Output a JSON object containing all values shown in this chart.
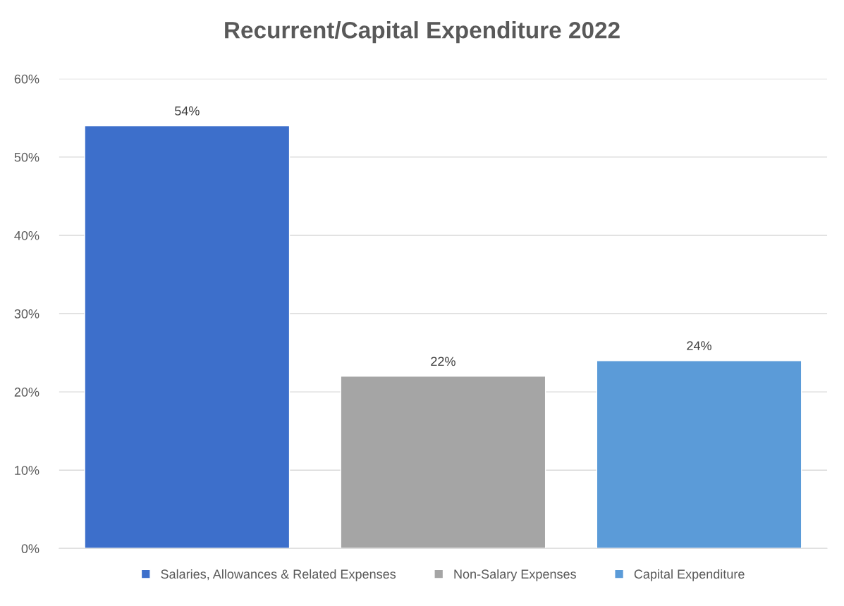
{
  "chart_data": {
    "type": "bar",
    "title": "Recurrent/Capital Expenditure 2022",
    "categories": [
      null,
      null,
      null
    ],
    "series": [
      {
        "name": "Salaries, Allowances & Related Expenses",
        "color": "#3d6fcb",
        "values": [
          54,
          null,
          null
        ],
        "value_labels": [
          "54%",
          null,
          null
        ]
      },
      {
        "name": "Non-Salary Expenses",
        "color": "#a5a5a5",
        "values": [
          null,
          22,
          null
        ],
        "value_labels": [
          null,
          "22%",
          null
        ]
      },
      {
        "name": "Capital Expenditure",
        "color": "#5b9bd8",
        "values": [
          null,
          null,
          24
        ],
        "value_labels": [
          null,
          null,
          "24%"
        ]
      }
    ],
    "ylim": [
      0,
      60
    ],
    "yticks": [
      {
        "value": 0,
        "label": "0%"
      },
      {
        "value": 10,
        "label": "10%"
      },
      {
        "value": 20,
        "label": "20%"
      },
      {
        "value": 30,
        "label": "30%"
      },
      {
        "value": 40,
        "label": "40%"
      },
      {
        "value": 50,
        "label": "50%"
      },
      {
        "value": 60,
        "label": "60%"
      }
    ],
    "grid": "y",
    "legend": "bottom"
  }
}
